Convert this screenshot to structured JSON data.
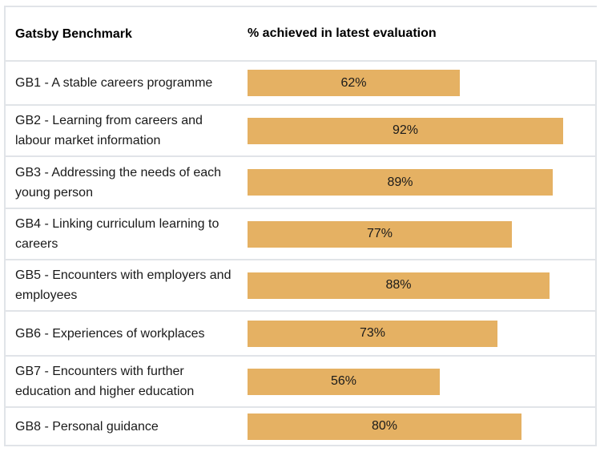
{
  "table": {
    "header": {
      "col1": "Gatsby Benchmark",
      "col2": "% achieved in latest evaluation"
    },
    "rows": [
      {
        "label": "GB1 - A stable careers programme",
        "pct": 62,
        "pct_label": "62%"
      },
      {
        "label": "GB2 - Learning from careers and\nlabour market information",
        "pct": 92,
        "pct_label": "92%"
      },
      {
        "label": "GB3 - Addressing the needs of each\nyoung person",
        "pct": 89,
        "pct_label": "89%"
      },
      {
        "label": "GB4 - Linking curriculum learning to\ncareers",
        "pct": 77,
        "pct_label": "77%"
      },
      {
        "label": "GB5 - Encounters with employers and\nemployees",
        "pct": 88,
        "pct_label": "88%"
      },
      {
        "label": "GB6 - Experiences of workplaces",
        "pct": 73,
        "pct_label": "73%"
      },
      {
        "label": "GB7 - Encounters with further\neducation and higher education",
        "pct": 56,
        "pct_label": "56%"
      },
      {
        "label": "GB8 - Personal guidance",
        "pct": 80,
        "pct_label": "80%"
      }
    ]
  },
  "chart_data": {
    "type": "bar",
    "orientation": "horizontal",
    "title": "",
    "xlabel": "% achieved in latest evaluation",
    "ylabel": "Gatsby Benchmark",
    "xlim": [
      0,
      100
    ],
    "categories": [
      "GB1 - A stable careers programme",
      "GB2 - Learning from careers and labour market information",
      "GB3 - Addressing the needs of each young person",
      "GB4 - Linking curriculum learning to careers",
      "GB5 - Encounters with employers and employees",
      "GB6 - Experiences of workplaces",
      "GB7 - Encounters with further education and higher education",
      "GB8 - Personal guidance"
    ],
    "values": [
      62,
      92,
      89,
      77,
      88,
      73,
      56,
      80
    ],
    "data_labels": [
      "62%",
      "92%",
      "89%",
      "77%",
      "88%",
      "73%",
      "56%",
      "80%"
    ],
    "grid": false,
    "legend": false
  },
  "colors": {
    "bar_fill": "#E5B163",
    "table_border": "#E1E4E8",
    "text": "#1A1A1A"
  }
}
